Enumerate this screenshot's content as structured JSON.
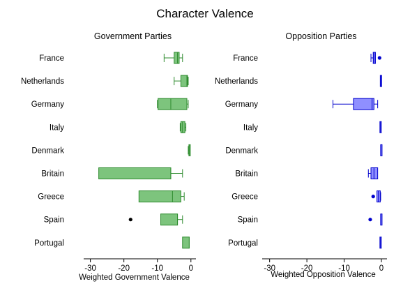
{
  "title": "Character Valence",
  "colors": {
    "government_fill": "#7dc47d",
    "government_stroke": "#2e8b2e",
    "opposition_fill": "#8f8fff",
    "opposition_stroke": "#0000cc",
    "outlier": "#000000"
  },
  "chart_data": [
    {
      "type": "boxplot",
      "orientation": "horizontal",
      "title": "Government Parties",
      "xlabel": "Weighted Government Valence",
      "xlim": [
        -32,
        1.5
      ],
      "xticks": [
        -30,
        -20,
        -10,
        0
      ],
      "categories": [
        "France",
        "Netherlands",
        "Germany",
        "Italy",
        "Denmark",
        "Britain",
        "Greece",
        "Spain",
        "Portugal"
      ],
      "boxes": [
        {
          "label": "France",
          "whisker_low": -8,
          "q1": -5,
          "median": -4,
          "q3": -3.5,
          "whisker_high": -2.5,
          "outliers": []
        },
        {
          "label": "Netherlands",
          "whisker_low": -5,
          "q1": -3,
          "median": -1.2,
          "q3": -1,
          "whisker_high": -0.8,
          "outliers": []
        },
        {
          "label": "Germany",
          "whisker_low": -10,
          "q1": -9.8,
          "median": -6,
          "q3": -1.2,
          "whisker_high": -0.8,
          "outliers": []
        },
        {
          "label": "Italy",
          "whisker_low": -3.2,
          "q1": -3,
          "median": -2.5,
          "q3": -1.8,
          "whisker_high": -1.5,
          "outliers": []
        },
        {
          "label": "Denmark",
          "whisker_low": -0.8,
          "q1": -0.6,
          "median": -0.5,
          "q3": -0.3,
          "whisker_high": -0.2,
          "outliers": []
        },
        {
          "label": "Britain",
          "whisker_low": -27.5,
          "q1": -27.5,
          "median": -6,
          "q3": -6,
          "whisker_high": -2.5,
          "outliers": []
        },
        {
          "label": "Greece",
          "whisker_low": -15.5,
          "q1": -15.5,
          "median": -5.5,
          "q3": -3,
          "whisker_high": -2,
          "outliers": []
        },
        {
          "label": "Spain",
          "whisker_low": -9,
          "q1": -9,
          "median": -4,
          "q3": -4,
          "whisker_high": -2.5,
          "outliers": [
            -18
          ]
        },
        {
          "label": "Portugal",
          "whisker_low": -2.5,
          "q1": -2.5,
          "median": -0.5,
          "q3": -0.5,
          "whisker_high": -0.5,
          "outliers": []
        }
      ]
    },
    {
      "type": "boxplot",
      "orientation": "horizontal",
      "title": "Opposition Parties",
      "xlabel": "Weighted Opposition Valence",
      "xlim": [
        -32,
        1.5
      ],
      "xticks": [
        -30,
        -20,
        -10,
        0
      ],
      "categories": [
        "France",
        "Netherlands",
        "Germany",
        "Italy",
        "Denmark",
        "Britain",
        "Greece",
        "Spain",
        "Portugal"
      ],
      "boxes": [
        {
          "label": "France",
          "whisker_low": -2.8,
          "q1": -2.2,
          "median": -2,
          "q3": -1.6,
          "whisker_high": -1.6,
          "outliers": [
            -0.5
          ]
        },
        {
          "label": "Netherlands",
          "whisker_low": -0.3,
          "q1": -0.3,
          "median": -0.2,
          "q3": -0.1,
          "whisker_high": -0.1,
          "outliers": []
        },
        {
          "label": "Germany",
          "whisker_low": -13,
          "q1": -7.5,
          "median": -2.5,
          "q3": -2,
          "whisker_high": -1,
          "outliers": []
        },
        {
          "label": "Italy",
          "whisker_low": -0.4,
          "q1": -0.4,
          "median": -0.3,
          "q3": -0.2,
          "whisker_high": -0.2,
          "outliers": []
        },
        {
          "label": "Denmark",
          "whisker_low": -0.2,
          "q1": -0.2,
          "median": -0.2,
          "q3": -0.2,
          "whisker_high": -0.2,
          "outliers": []
        },
        {
          "label": "Britain",
          "whisker_low": -3.5,
          "q1": -2.8,
          "median": -2,
          "q3": -1,
          "whisker_high": -1,
          "outliers": []
        },
        {
          "label": "Greece",
          "whisker_low": -1.2,
          "q1": -1.2,
          "median": -0.8,
          "q3": -0.3,
          "whisker_high": -0.2,
          "outliers": [
            -2.2
          ]
        },
        {
          "label": "Spain",
          "whisker_low": -0.2,
          "q1": -0.2,
          "median": -0.2,
          "q3": -0.2,
          "whisker_high": -0.2,
          "outliers": [
            -3
          ]
        },
        {
          "label": "Portugal",
          "whisker_low": -0.4,
          "q1": -0.4,
          "median": -0.3,
          "q3": -0.2,
          "whisker_high": -0.2,
          "outliers": []
        }
      ]
    }
  ]
}
